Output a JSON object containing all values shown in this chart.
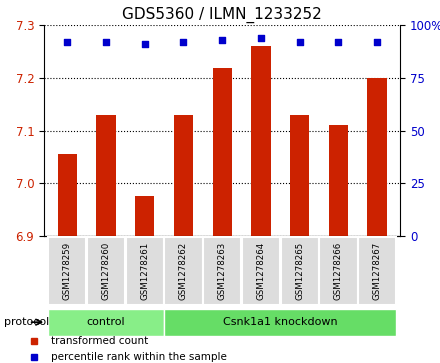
{
  "title": "GDS5360 / ILMN_1233252",
  "samples": [
    "GSM1278259",
    "GSM1278260",
    "GSM1278261",
    "GSM1278262",
    "GSM1278263",
    "GSM1278264",
    "GSM1278265",
    "GSM1278266",
    "GSM1278267"
  ],
  "bar_values": [
    7.055,
    7.13,
    6.975,
    7.13,
    7.22,
    7.26,
    7.13,
    7.11,
    7.2
  ],
  "percentile_values": [
    92,
    92,
    91,
    92,
    93,
    94,
    92,
    92,
    92
  ],
  "ylim": [
    6.9,
    7.3
  ],
  "yticks": [
    6.9,
    7.0,
    7.1,
    7.2,
    7.3
  ],
  "right_ylim": [
    0,
    100
  ],
  "right_yticks": [
    0,
    25,
    50,
    75,
    100
  ],
  "right_yticklabels": [
    "0",
    "25",
    "50",
    "75",
    "100%"
  ],
  "bar_color": "#cc2200",
  "percentile_color": "#0000cc",
  "bar_width": 0.5,
  "groups": [
    {
      "label": "control",
      "start": 0,
      "end": 3,
      "color": "#88ee88"
    },
    {
      "label": "Csnk1a1 knockdown",
      "start": 3,
      "end": 9,
      "color": "#66dd66"
    }
  ],
  "protocol_label": "protocol",
  "legend_items": [
    {
      "label": "transformed count",
      "color": "#cc2200"
    },
    {
      "label": "percentile rank within the sample",
      "color": "#0000cc"
    }
  ],
  "plot_bg_color": "#ffffff",
  "title_fontsize": 11,
  "tick_fontsize": 8.5
}
